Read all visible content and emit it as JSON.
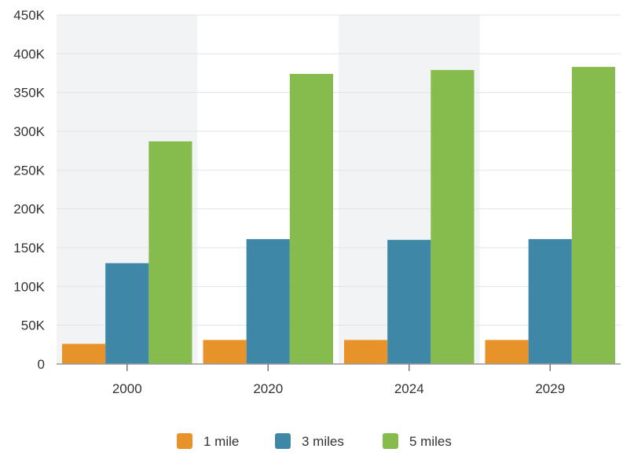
{
  "chart_data": {
    "type": "bar",
    "categories": [
      "2000",
      "2020",
      "2024",
      "2029"
    ],
    "series": [
      {
        "name": "1 mile",
        "color": "#E8922A",
        "values": [
          26000,
          31000,
          31000,
          31000
        ]
      },
      {
        "name": "3 miles",
        "color": "#3F87A6",
        "values": [
          130000,
          161000,
          160000,
          161000
        ]
      },
      {
        "name": "5 miles",
        "color": "#86BB4D",
        "values": [
          287000,
          374000,
          379000,
          383000
        ]
      }
    ],
    "ylim": [
      0,
      450000
    ],
    "yticks": [
      0,
      50000,
      100000,
      150000,
      200000,
      250000,
      300000,
      350000,
      400000,
      450000
    ],
    "ytick_labels": [
      "0",
      "50K",
      "100K",
      "150K",
      "200K",
      "250K",
      "300K",
      "350K",
      "400K",
      "450K"
    ],
    "grid": true,
    "alternate_band_color": "#F2F3F4",
    "legend_position": "bottom-center"
  }
}
